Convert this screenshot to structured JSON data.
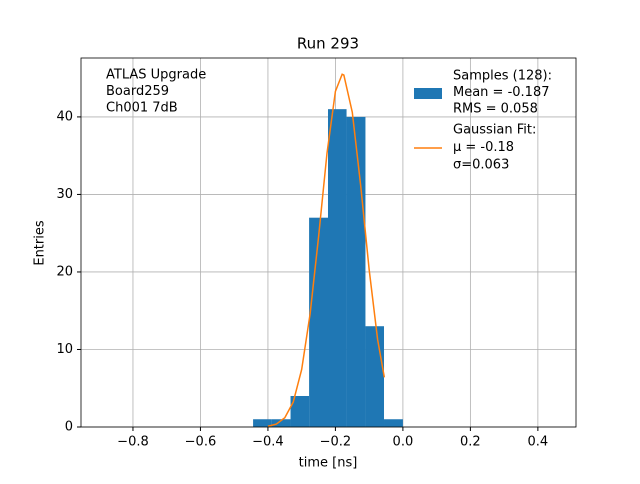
{
  "chart_data": {
    "type": "histogram",
    "title": "Run 293",
    "xlabel": "time [ns]",
    "ylabel": "Entries",
    "annotation": [
      "ATLAS Upgrade",
      " Board259",
      " Ch001 7dB"
    ],
    "xlim": [
      -0.954,
      0.513
    ],
    "ylim": [
      0,
      47.6
    ],
    "xticks": [
      {
        "value": -0.8,
        "label": "−0.8"
      },
      {
        "value": -0.6,
        "label": "−0.6"
      },
      {
        "value": -0.4,
        "label": "−0.4"
      },
      {
        "value": -0.2,
        "label": "−0.2"
      },
      {
        "value": 0.0,
        "label": "0.0"
      },
      0.2,
      0.4
    ],
    "yticks": [
      0,
      10,
      20,
      30,
      40
    ],
    "grid": true,
    "legend": "upper right",
    "histogram": {
      "name": [
        "Samples (128):",
        " Mean = -0.187",
        " RMS = 0.058"
      ],
      "color": "#1f77b4",
      "bins": [
        -0.444,
        -0.389,
        -0.333,
        -0.278,
        -0.222,
        -0.167,
        -0.111,
        -0.056,
        0.0
      ],
      "values": [
        1,
        1,
        4,
        27,
        41,
        40,
        13,
        1
      ]
    },
    "fit": {
      "name": [
        "Gaussian Fit:",
        " μ = -0.18",
        " σ=0.063"
      ],
      "color": "#ff7f0e",
      "x": [
        -0.4,
        -0.375,
        -0.35,
        -0.325,
        -0.3,
        -0.275,
        -0.25,
        -0.225,
        -0.2,
        -0.18,
        -0.175,
        -0.15,
        -0.125,
        -0.1,
        -0.075,
        -0.055
      ],
      "values": [
        0.1,
        0.38,
        1.19,
        3.22,
        7.42,
        14.6,
        24.5,
        35.3,
        43.3,
        45.5,
        45.4,
        40.6,
        31.1,
        20.3,
        11.3,
        6.4
      ]
    }
  }
}
